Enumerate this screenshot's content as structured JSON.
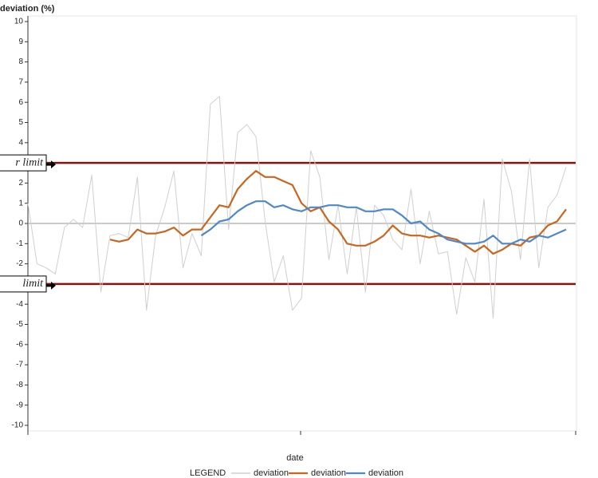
{
  "chart_data": {
    "type": "line",
    "y_label": "deviation (%)",
    "x_label": "date",
    "legend_title": "LEGEND",
    "categories": [
      null,
      null,
      null,
      null,
      null,
      null,
      null,
      null,
      null,
      null,
      null,
      null,
      null,
      null,
      null,
      null,
      null,
      null,
      null,
      null,
      null,
      null,
      null,
      null,
      null,
      null,
      null,
      null,
      null,
      null,
      null,
      null,
      null,
      null,
      null,
      null,
      null,
      null,
      null,
      null,
      null,
      null,
      null,
      null,
      null,
      null,
      null,
      null,
      null,
      null,
      null,
      null,
      null,
      null,
      null,
      null,
      null,
      null,
      null,
      null
    ],
    "ylim": [
      -10,
      10
    ],
    "yticks": [
      -10,
      -9,
      -8,
      -7,
      -6,
      -5,
      -4,
      -3,
      -2,
      -1,
      0,
      1,
      2,
      3,
      4,
      5,
      6,
      7,
      8,
      9,
      10
    ],
    "zero_line": 0,
    "reference_lines": [
      {
        "value": 3,
        "label": "r limit",
        "color": "#8b1010"
      },
      {
        "value": -3,
        "label": "limit",
        "color": "#8b1010"
      }
    ],
    "series": [
      {
        "name": "deviation",
        "color": "#cfcfcf",
        "width": 1,
        "values": [
          1.0,
          -2.0,
          -2.2,
          -2.5,
          -0.2,
          0.2,
          -0.2,
          2.4,
          -3.4,
          -0.6,
          -0.5,
          -0.7,
          2.3,
          -4.3,
          -0.6,
          0.8,
          2.6,
          -2.2,
          -0.5,
          -1.6,
          5.9,
          6.3,
          -0.3,
          4.5,
          4.9,
          4.3,
          0.1,
          -2.9,
          -1.6,
          -4.3,
          -3.7,
          3.6,
          2.3,
          -1.8,
          0.9,
          -2.5,
          0.8,
          -3.4,
          0.9,
          0.4,
          -0.8,
          -1.3,
          1.7,
          -2.0,
          0.6,
          -1.5,
          -1.4,
          -4.5,
          -1.7,
          -2.9,
          1.2,
          -4.7,
          3.2,
          1.6,
          -1.8,
          3.2,
          -2.2,
          0.8,
          1.4,
          2.8
        ]
      },
      {
        "name": "deviation",
        "color": "#c8661e",
        "width": 2.2,
        "values": [
          null,
          null,
          null,
          null,
          null,
          null,
          null,
          null,
          null,
          -0.8,
          -0.9,
          -0.8,
          -0.3,
          -0.5,
          -0.5,
          -0.4,
          -0.2,
          -0.6,
          -0.3,
          -0.3,
          0.3,
          0.9,
          0.8,
          1.7,
          2.2,
          2.6,
          2.3,
          2.3,
          2.1,
          1.9,
          1.0,
          0.6,
          0.8,
          0.1,
          -0.3,
          -1.0,
          -1.1,
          -1.1,
          -0.9,
          -0.6,
          -0.1,
          -0.5,
          -0.6,
          -0.6,
          -0.7,
          -0.6,
          -0.7,
          -0.8,
          -1.1,
          -1.4,
          -1.1,
          -1.5,
          -1.3,
          -1.0,
          -1.1,
          -0.7,
          -0.6,
          -0.1,
          0.1,
          0.7
        ]
      },
      {
        "name": "deviation",
        "color": "#4f88c8",
        "width": 2.2,
        "values": [
          null,
          null,
          null,
          null,
          null,
          null,
          null,
          null,
          null,
          null,
          null,
          null,
          null,
          null,
          null,
          null,
          null,
          null,
          null,
          -0.6,
          -0.3,
          0.1,
          0.2,
          0.6,
          0.9,
          1.1,
          1.1,
          0.8,
          0.9,
          0.7,
          0.6,
          0.8,
          0.8,
          0.9,
          0.9,
          0.8,
          0.8,
          0.6,
          0.6,
          0.7,
          0.7,
          0.4,
          0.0,
          0.1,
          -0.3,
          -0.5,
          -0.8,
          -0.9,
          -1.0,
          -1.0,
          -0.9,
          -0.6,
          -1.0,
          -1.0,
          -0.8,
          -0.9,
          -0.6,
          -0.7,
          -0.5,
          -0.3
        ]
      }
    ]
  }
}
